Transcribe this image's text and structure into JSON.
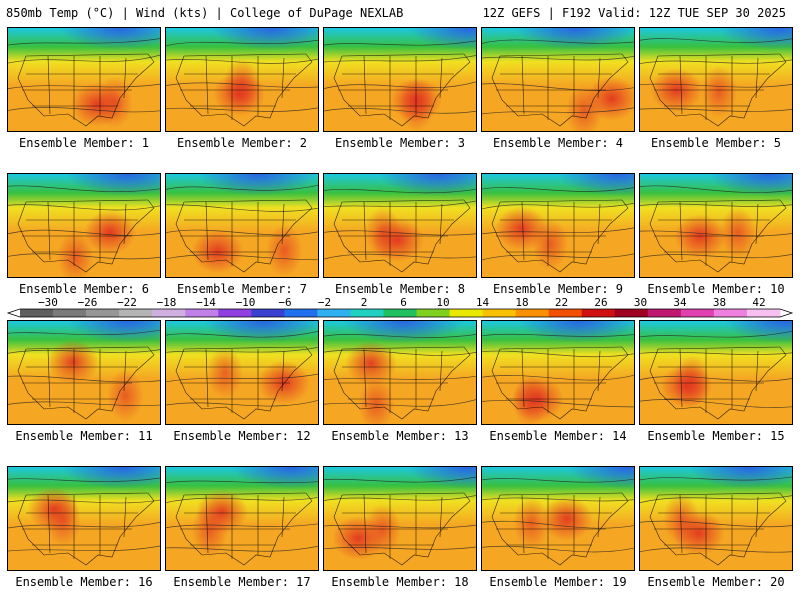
{
  "header": {
    "left": "850mb Temp (°C) | Wind (kts) | College of DuPage NEXLAB",
    "right": "12Z GEFS | F192 Valid: 12Z TUE SEP 30 2025"
  },
  "members": [
    {
      "label": "Ensemble Member: 1"
    },
    {
      "label": "Ensemble Member: 2"
    },
    {
      "label": "Ensemble Member: 3"
    },
    {
      "label": "Ensemble Member: 4"
    },
    {
      "label": "Ensemble Member: 5"
    },
    {
      "label": "Ensemble Member: 6"
    },
    {
      "label": "Ensemble Member: 7"
    },
    {
      "label": "Ensemble Member: 8"
    },
    {
      "label": "Ensemble Member: 9"
    },
    {
      "label": "Ensemble Member: 10"
    },
    {
      "label": "Ensemble Member: 11"
    },
    {
      "label": "Ensemble Member: 12"
    },
    {
      "label": "Ensemble Member: 13"
    },
    {
      "label": "Ensemble Member: 14"
    },
    {
      "label": "Ensemble Member: 15"
    },
    {
      "label": "Ensemble Member: 16"
    },
    {
      "label": "Ensemble Member: 17"
    },
    {
      "label": "Ensemble Member: 18"
    },
    {
      "label": "Ensemble Member: 19"
    },
    {
      "label": "Ensemble Member: 20"
    }
  ],
  "colorbar": {
    "tick_labels": [
      "−30",
      "−26",
      "−22",
      "−18",
      "−14",
      "−10",
      "−6",
      "−2",
      "2",
      "6",
      "10",
      "14",
      "18",
      "22",
      "26",
      "30",
      "34",
      "38",
      "42"
    ],
    "colors": [
      "#5f5f5f",
      "#7a7a7a",
      "#969696",
      "#b4b4b4",
      "#d0b0e0",
      "#c080e8",
      "#9040e0",
      "#3a40d0",
      "#2070f0",
      "#30b0f0",
      "#20d0c0",
      "#20c060",
      "#80d020",
      "#e8e800",
      "#f8c000",
      "#f89000",
      "#f05000",
      "#d01010",
      "#a00020",
      "#c01870",
      "#e040b0",
      "#f080e0",
      "#f8c0f0"
    ]
  },
  "map_colors": {
    "blue": "#2a5fe0",
    "cyan": "#1cc8e0",
    "green": "#38c040",
    "yellow": "#f0e020",
    "orange": "#f5a623",
    "red": "#e03020"
  }
}
